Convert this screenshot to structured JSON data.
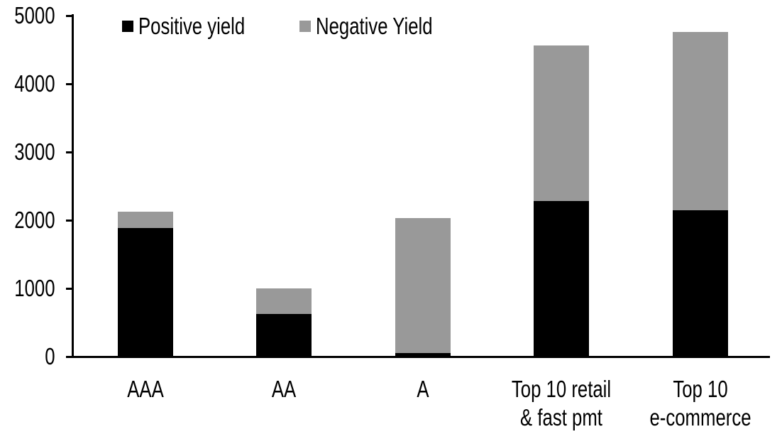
{
  "chart_data": {
    "type": "bar",
    "stacked": true,
    "title": "",
    "xlabel": "",
    "ylabel": "",
    "ylim": [
      0,
      5000
    ],
    "yticks": [
      0,
      1000,
      2000,
      3000,
      4000,
      5000
    ],
    "grid": false,
    "legend_position": "top",
    "categories": [
      "AAA",
      "AA",
      "A",
      "Top 10 retail & fast pmt",
      "Top 10 e-commerce"
    ],
    "category_label_lines": [
      [
        "AAA"
      ],
      [
        "AA"
      ],
      [
        "A"
      ],
      [
        "Top 10 retail",
        "& fast pmt"
      ],
      [
        "Top 10",
        "e-commerce"
      ]
    ],
    "series": [
      {
        "name": "Positive yield",
        "color": "#000000",
        "values": [
          1890,
          620,
          50,
          2280,
          2150
        ]
      },
      {
        "name": "Negative Yield",
        "color": "#999999",
        "values": [
          230,
          380,
          1980,
          2280,
          2610
        ]
      }
    ],
    "totals": [
      2120,
      1000,
      2030,
      4560,
      4760
    ]
  },
  "colors": {
    "axis": "#000000",
    "background": "#ffffff",
    "positive": "#000000",
    "negative": "#999999"
  }
}
